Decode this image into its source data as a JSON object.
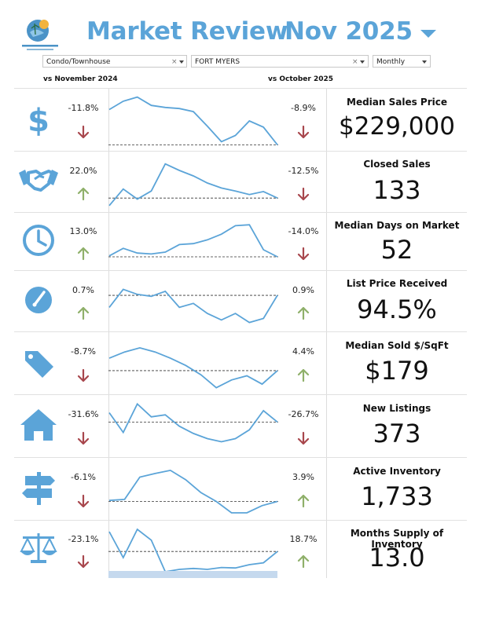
{
  "header": {
    "title": "Market Review",
    "period": "Nov 2025",
    "logo_lettering": "ROYAL PALM PROPERTIES REALTORS"
  },
  "filters": {
    "property_type": "Condo/Townhouse",
    "city": "FORT MYERS",
    "frequency": "Monthly",
    "clear_symbol": "×"
  },
  "labels": {
    "vs_year": "vs November 2024",
    "vs_month": "vs October 2025"
  },
  "colors": {
    "brand_blue": "#5ba4d8",
    "up": "#8fb06a",
    "down": "#a8474d",
    "sparkline": "#5ba4d8"
  },
  "metrics": [
    {
      "name": "Median Sales Price",
      "value": "$229,000",
      "yoy": "-8.9%",
      "yoy_dir": "down",
      "mom": "-11.8%",
      "mom_dir": "down",
      "icon": "dollar-icon",
      "trend": [
        0.28,
        0.12,
        0.04,
        0.2,
        0.24,
        0.26,
        0.32,
        0.6,
        0.9,
        0.78,
        0.5,
        0.62,
        0.96
      ]
    },
    {
      "name": "Closed Sales",
      "value": "133",
      "yoy": "-12.5%",
      "yoy_dir": "down",
      "mom": "22.0%",
      "mom_dir": "up",
      "icon": "handshake-icon",
      "trend": [
        0.95,
        0.62,
        0.82,
        0.66,
        0.12,
        0.25,
        0.36,
        0.5,
        0.6,
        0.66,
        0.73,
        0.67,
        0.8
      ]
    },
    {
      "name": "Median Days on Market",
      "value": "52",
      "yoy": "-14.0%",
      "yoy_dir": "down",
      "mom": "13.0%",
      "mom_dir": "up",
      "icon": "clock-icon",
      "trend": [
        0.78,
        0.62,
        0.72,
        0.74,
        0.7,
        0.54,
        0.52,
        0.44,
        0.32,
        0.14,
        0.12,
        0.65,
        0.8
      ]
    },
    {
      "name": "List Price Received",
      "value": "94.5%",
      "yoy": "0.9%",
      "yoy_dir": "up",
      "mom": "0.7%",
      "mom_dir": "up",
      "icon": "gauge-icon",
      "trend": [
        0.6,
        0.24,
        0.34,
        0.38,
        0.28,
        0.6,
        0.52,
        0.72,
        0.85,
        0.72,
        0.9,
        0.82,
        0.36
      ]
    },
    {
      "name": "Median Sold $/SqFt",
      "value": "$179",
      "yoy": "4.4%",
      "yoy_dir": "up",
      "mom": "-8.7%",
      "mom_dir": "down",
      "icon": "price-tag-icon",
      "trend": [
        0.38,
        0.26,
        0.18,
        0.26,
        0.38,
        0.52,
        0.7,
        0.95,
        0.8,
        0.72,
        0.88,
        0.62
      ]
    },
    {
      "name": "New Listings",
      "value": "373",
      "yoy": "-26.7%",
      "yoy_dir": "down",
      "mom": "-31.6%",
      "mom_dir": "down",
      "icon": "house-icon",
      "trend": [
        0.22,
        0.6,
        0.05,
        0.3,
        0.26,
        0.48,
        0.62,
        0.72,
        0.78,
        0.72,
        0.55,
        0.18,
        0.4
      ]
    },
    {
      "name": "Active Inventory",
      "value": "1,733",
      "yoy": "3.9%",
      "yoy_dir": "up",
      "mom": "-6.1%",
      "mom_dir": "down",
      "icon": "signpost-icon",
      "trend": [
        0.7,
        0.68,
        0.25,
        0.18,
        0.12,
        0.3,
        0.55,
        0.72,
        0.94,
        0.94,
        0.8,
        0.72
      ]
    },
    {
      "name": "Months Supply of Inventory",
      "value": "13.0",
      "yoy": "18.7%",
      "yoy_dir": "up",
      "mom": "-23.1%",
      "mom_dir": "down",
      "icon": "scales-icon",
      "trend": [
        0.1,
        0.65,
        0.05,
        0.28,
        0.95,
        0.9,
        0.88,
        0.9,
        0.86,
        0.87,
        0.8,
        0.76,
        0.52
      ]
    }
  ]
}
